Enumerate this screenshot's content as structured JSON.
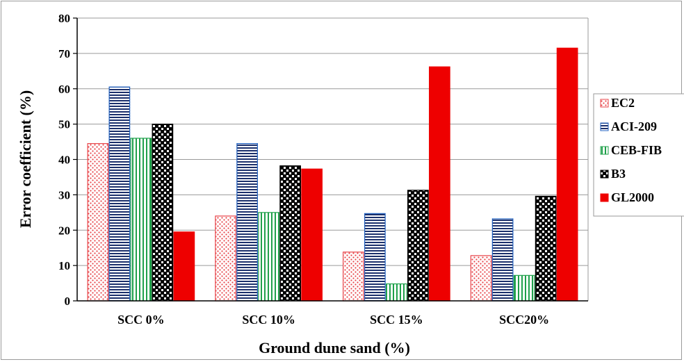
{
  "chart_data": {
    "type": "bar",
    "title": "",
    "xlabel": "Ground dune sand (%)",
    "ylabel": "Error coefficient (%)",
    "ylim": [
      0,
      80
    ],
    "yticks": [
      "0",
      "10",
      "20",
      "30",
      "40",
      "50",
      "60",
      "70",
      "80"
    ],
    "grid": true,
    "legend_position": "right",
    "categories": [
      "SCC 0%",
      "SCC 10%",
      "SCC 15%",
      "SCC20%"
    ],
    "series": [
      {
        "name": "EC2",
        "values": [
          44.5,
          24.0,
          13.8,
          12.8
        ],
        "color": "#e8454a",
        "pattern": "dots"
      },
      {
        "name": "ACI-209",
        "values": [
          60.5,
          44.5,
          24.7,
          23.2
        ],
        "color": "#1f5fbf",
        "pattern": "hlines"
      },
      {
        "name": "CEB-FIB",
        "values": [
          46.0,
          25.0,
          4.8,
          7.2
        ],
        "color": "#1fa04a",
        "pattern": "vlines"
      },
      {
        "name": "B3",
        "values": [
          50.0,
          38.2,
          31.3,
          29.6
        ],
        "color": "#000000",
        "pattern": "checker"
      },
      {
        "name": "GL2000",
        "values": [
          19.5,
          37.3,
          66.2,
          71.5
        ],
        "color": "#ee0000",
        "pattern": "solid"
      }
    ]
  }
}
